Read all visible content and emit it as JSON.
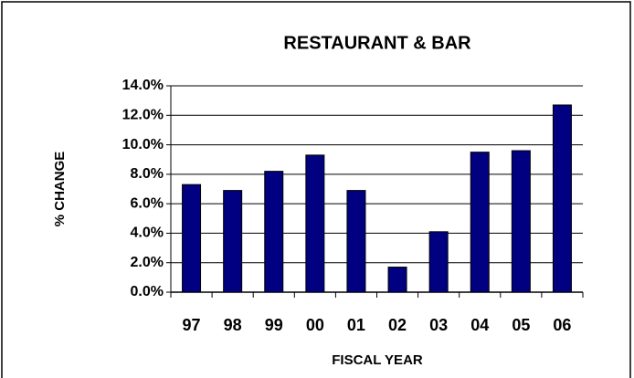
{
  "chart_data": {
    "type": "bar",
    "title": "RESTAURANT & BAR",
    "x_label": "FISCAL YEAR",
    "y_label": "% CHANGE",
    "categories": [
      "97",
      "98",
      "99",
      "00",
      "01",
      "02",
      "03",
      "04",
      "05",
      "06"
    ],
    "values": [
      7.3,
      6.9,
      8.2,
      9.3,
      6.9,
      1.7,
      4.1,
      9.5,
      9.6,
      12.7
    ],
    "color": "#000080",
    "ylim": [
      0,
      14
    ],
    "yticks": [
      {
        "value": 0,
        "label": "0.0%"
      },
      {
        "value": 2,
        "label": "2.0%"
      },
      {
        "value": 4,
        "label": "4.0%"
      },
      {
        "value": 6,
        "label": "6.0%"
      },
      {
        "value": 8,
        "label": "8.0%"
      },
      {
        "value": 10,
        "label": "10.0%"
      },
      {
        "value": 12,
        "label": "12.0%"
      },
      {
        "value": 14,
        "label": "14.0%"
      }
    ],
    "grid": true
  }
}
